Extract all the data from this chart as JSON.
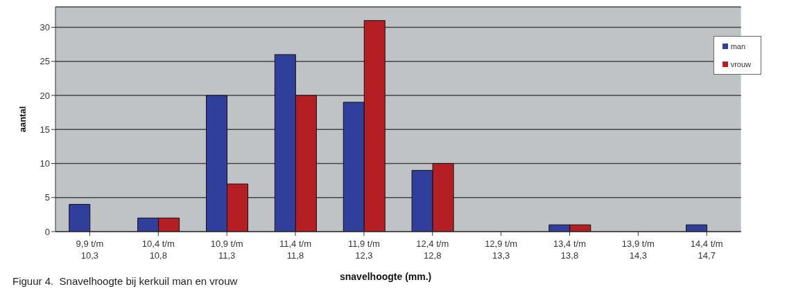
{
  "chart_data": {
    "type": "bar",
    "xlabel": "snavelhoogte (mm.)",
    "ylabel": "aantal",
    "annotations": [
      "Figuur 4.  Snavelhoogte bij kerkuil man en vrouw"
    ],
    "categories": [
      "9,9 t/m\n10,3",
      "10,4 t/m\n10,8",
      "10,9 t/m\n11,3",
      "11,4 t/m\n11,8",
      "11,9 t/m\n12,3",
      "12,4 t/m\n12,8",
      "12,9 t/m\n13,3",
      "13,4 t/m\n13,8",
      "13,9 t/m\n14,3",
      "14,4 t/m\n14,7"
    ],
    "series": [
      {
        "name": "man",
        "color": "#303f9c",
        "values": [
          4,
          2,
          20,
          26,
          19,
          9,
          0,
          1,
          0,
          1
        ]
      },
      {
        "name": "vrouw",
        "color": "#b51f24",
        "values": [
          0,
          2,
          7,
          20,
          31,
          10,
          0,
          1,
          0,
          0
        ]
      }
    ],
    "ylim": [
      0,
      33
    ],
    "yticks": [
      0,
      5,
      10,
      15,
      20,
      25,
      30
    ],
    "grid": "y",
    "legend": "top right"
  }
}
